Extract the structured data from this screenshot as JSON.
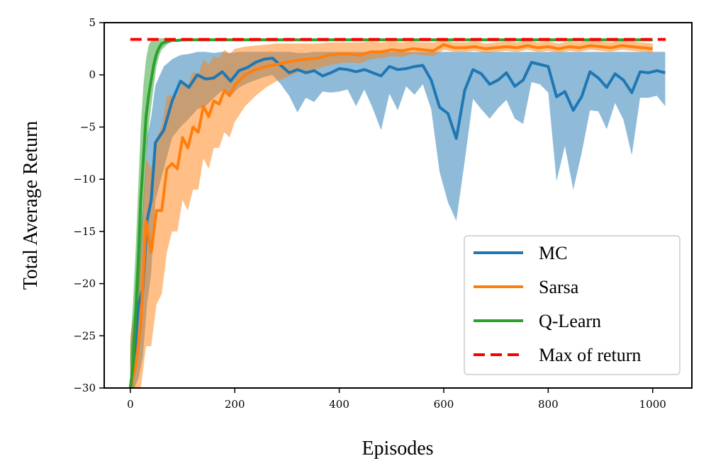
{
  "chart_data": {
    "type": "line",
    "xlabel": "Episodes",
    "ylabel": "Total Average Return",
    "xlim": [
      -50,
      1075
    ],
    "ylim": [
      -30,
      5
    ],
    "xticks": [
      0,
      200,
      400,
      600,
      800,
      1000
    ],
    "yticks": [
      -30,
      -25,
      -20,
      -15,
      -10,
      -5,
      0,
      5
    ],
    "grid": false,
    "legend_position": "lower-right",
    "colors": {
      "MC": "#1f77b4",
      "Sarsa": "#ff7f0e",
      "Q-Learn": "#2ca02c",
      "Max of return": "#ff0000"
    },
    "series": [
      {
        "name": "MC",
        "style": "solid",
        "x": [
          0,
          8,
          16,
          24,
          32,
          40,
          48,
          64,
          80,
          96,
          112,
          128,
          144,
          160,
          176,
          192,
          208,
          224,
          240,
          256,
          272,
          288,
          304,
          320,
          336,
          352,
          368,
          384,
          400,
          416,
          432,
          448,
          464,
          480,
          496,
          512,
          528,
          544,
          560,
          576,
          592,
          608,
          624,
          640,
          656,
          672,
          688,
          704,
          720,
          736,
          752,
          768,
          784,
          800,
          816,
          832,
          848,
          864,
          880,
          896,
          912,
          928,
          944,
          960,
          976,
          992,
          1008,
          1024
        ],
        "y": [
          -30,
          -27,
          -22,
          -20.5,
          -14,
          -12,
          -6.5,
          -5.3,
          -2.5,
          -0.6,
          -1.2,
          0,
          -0.4,
          -0.3,
          0.3,
          -0.6,
          0.4,
          0.7,
          1.2,
          1.5,
          1.6,
          0.9,
          0.2,
          0.5,
          0.2,
          0.4,
          -0.1,
          0.2,
          0.6,
          0.5,
          0.3,
          0.5,
          0.2,
          -0.1,
          0.8,
          0.5,
          0.6,
          0.8,
          0.9,
          -0.5,
          -3.1,
          -3.7,
          -6.1,
          -1.5,
          0.5,
          0.1,
          -0.9,
          -0.5,
          0.2,
          -1.1,
          -0.5,
          1.2,
          1.0,
          0.8,
          -2.1,
          -1.6,
          -3.4,
          -2.1,
          0.3,
          -0.3,
          -1.2,
          0.1,
          -0.5,
          -1.7,
          0.3,
          0.2,
          0.4,
          0.2
        ],
        "lower": [
          -30,
          -30,
          -29,
          -27,
          -22,
          -19,
          -12,
          -9,
          -6,
          -5,
          -4.2,
          -3.3,
          -3.0,
          -2.2,
          -1.5,
          -2.0,
          -1.2,
          -0.8,
          -0.5,
          -0.2,
          0.0,
          -0.9,
          -2.0,
          -3.6,
          -2.2,
          -2.6,
          -1.6,
          -1.7,
          -1.6,
          -1.4,
          -3.0,
          -1.4,
          -3.2,
          -5.3,
          -1.8,
          -3.4,
          -1.1,
          -1.9,
          -0.9,
          -3.3,
          -9.3,
          -12.2,
          -14.0,
          -8.3,
          -2.3,
          -3.3,
          -4.2,
          -3.2,
          -2.4,
          -4.2,
          -4.7,
          -0.7,
          -0.9,
          -1.7,
          -10.2,
          -6.8,
          -11.0,
          -7.5,
          -3.4,
          -3.5,
          -5.2,
          -2.7,
          -4.3,
          -7.7,
          -2.2,
          -2.2,
          -2.0,
          -3.0
        ],
        "upper": [
          -27,
          -23,
          -16,
          -13,
          -6,
          -4,
          -1,
          0.8,
          1.5,
          1.9,
          2.0,
          2.2,
          2.2,
          2.1,
          2.2,
          2.1,
          2.2,
          2.2,
          2.2,
          2.2,
          2.2,
          2.2,
          2.2,
          2.1,
          2.1,
          2.2,
          2.2,
          2.2,
          2.2,
          2.2,
          2.2,
          2.2,
          2.2,
          2.2,
          2.2,
          2.2,
          2.2,
          2.2,
          2.2,
          2.2,
          2.2,
          2.2,
          2.2,
          2.2,
          2.2,
          2.2,
          2.2,
          2.2,
          2.2,
          2.2,
          2.2,
          2.2,
          2.2,
          2.2,
          2.2,
          2.2,
          2.2,
          2.2,
          2.2,
          2.2,
          2.2,
          2.2,
          2.2,
          2.2,
          2.2,
          2.2,
          2.2,
          2.2
        ]
      },
      {
        "name": "Sarsa",
        "style": "solid",
        "x": [
          0,
          10,
          20,
          30,
          40,
          50,
          60,
          70,
          80,
          90,
          100,
          110,
          120,
          130,
          140,
          150,
          160,
          170,
          180,
          190,
          200,
          220,
          240,
          260,
          280,
          300,
          320,
          340,
          360,
          380,
          400,
          420,
          440,
          460,
          480,
          500,
          520,
          540,
          560,
          580,
          600,
          620,
          640,
          660,
          680,
          700,
          720,
          740,
          760,
          780,
          800,
          820,
          840,
          860,
          880,
          900,
          920,
          940,
          960,
          980,
          1000
        ],
        "y": [
          -30,
          -28,
          -24,
          -14,
          -17,
          -13,
          -13,
          -9,
          -8.5,
          -9,
          -6,
          -7,
          -5,
          -5.5,
          -3,
          -4,
          -2.5,
          -2.8,
          -1.5,
          -2,
          -1,
          0,
          0.5,
          0.8,
          1.0,
          1.2,
          1.4,
          1.5,
          1.6,
          1.9,
          2.0,
          2.0,
          1.9,
          2.2,
          2.2,
          2.4,
          2.3,
          2.5,
          2.4,
          2.3,
          2.9,
          2.6,
          2.6,
          2.7,
          2.5,
          2.6,
          2.7,
          2.6,
          2.8,
          2.6,
          2.7,
          2.5,
          2.7,
          2.6,
          2.8,
          2.7,
          2.6,
          2.8,
          2.7,
          2.6,
          2.5
        ],
        "lower": [
          -30,
          -30,
          -30,
          -26,
          -26,
          -22,
          -21,
          -17,
          -15,
          -15,
          -12,
          -13,
          -11,
          -11,
          -8,
          -9,
          -7,
          -7,
          -5.5,
          -6,
          -4.5,
          -3,
          -2,
          -1.2,
          -0.6,
          -0.2,
          0.2,
          0.4,
          0.6,
          0.9,
          1.1,
          1.2,
          1.1,
          1.5,
          1.6,
          1.8,
          1.7,
          2.0,
          1.9,
          1.8,
          2.4,
          2.2,
          2.2,
          2.3,
          2.1,
          2.2,
          2.3,
          2.2,
          2.4,
          2.2,
          2.3,
          2.1,
          2.3,
          2.2,
          2.4,
          2.3,
          2.2,
          2.4,
          2.3,
          2.2,
          2.1
        ],
        "upper": [
          -25,
          -22,
          -17,
          -8,
          -9,
          -6,
          -5,
          -2,
          -2,
          -2,
          -0.5,
          -1,
          0.3,
          0,
          1.5,
          1.0,
          1.8,
          1.6,
          2.4,
          2.0,
          2.5,
          2.7,
          2.8,
          2.9,
          3.0,
          3.0,
          3.0,
          3.0,
          3.0,
          3.1,
          3.1,
          3.1,
          3.1,
          3.2,
          3.1,
          3.2,
          3.1,
          3.2,
          3.1,
          3.1,
          3.3,
          3.1,
          3.1,
          3.2,
          3.0,
          3.1,
          3.2,
          3.1,
          3.3,
          3.1,
          3.2,
          3.0,
          3.2,
          3.1,
          3.3,
          3.2,
          3.1,
          3.3,
          3.2,
          3.1,
          3.0
        ]
      },
      {
        "name": "Q-Learn",
        "style": "solid",
        "x": [
          0,
          5,
          10,
          15,
          20,
          25,
          30,
          35,
          40,
          45,
          50,
          55,
          60,
          70,
          80,
          90,
          100,
          200,
          300,
          400,
          500,
          600,
          700,
          800,
          900,
          1000
        ],
        "y": [
          -30,
          -28,
          -23,
          -18,
          -12,
          -8,
          -4,
          -2,
          -0.5,
          1.0,
          2.0,
          2.6,
          3.0,
          3.2,
          3.3,
          3.3,
          3.35,
          3.35,
          3.35,
          3.35,
          3.35,
          3.35,
          3.35,
          3.35,
          3.35,
          3.35
        ],
        "lower": [
          -30,
          -30,
          -28,
          -24,
          -18,
          -13,
          -8,
          -5,
          -3,
          -1,
          0.8,
          1.8,
          2.4,
          2.9,
          3.2,
          3.25,
          3.3,
          3.3,
          3.3,
          3.3,
          3.3,
          3.3,
          3.3,
          3.3,
          3.3,
          3.3
        ],
        "upper": [
          -26,
          -22,
          -17,
          -11,
          -5,
          -1,
          1.5,
          2.8,
          3.3,
          3.5,
          3.5,
          3.5,
          3.5,
          3.5,
          3.4,
          3.4,
          3.4,
          3.4,
          3.4,
          3.4,
          3.4,
          3.4,
          3.4,
          3.4,
          3.4,
          3.4
        ]
      },
      {
        "name": "Max of return",
        "style": "dashed",
        "x": [
          0,
          1025
        ],
        "y": [
          3.4,
          3.4
        ]
      }
    ]
  }
}
